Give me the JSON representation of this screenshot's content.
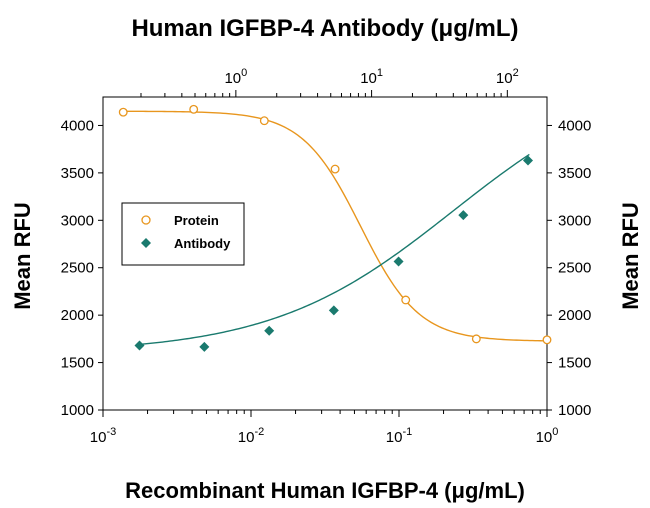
{
  "chart_data": {
    "type": "scatter",
    "title": "Human IGFBP-4 Antibody (μg/mL)",
    "xlabel": "Recombinant Human IGFBP-4 (μg/mL)",
    "ylabel_left": "Mean RFU",
    "ylabel_right": "Mean RFU",
    "x_scale": "log",
    "xlim": [
      0.001,
      1
    ],
    "x2_scale": "log",
    "x2lim": [
      0.105,
      196
    ],
    "ylim": [
      1000,
      4300
    ],
    "yticks": [
      1000,
      1500,
      2000,
      2500,
      3000,
      3500,
      4000
    ],
    "bottom_ticks": [
      {
        "value": 0.001,
        "base": "10",
        "exp": "-3"
      },
      {
        "value": 0.01,
        "base": "10",
        "exp": "-2"
      },
      {
        "value": 0.1,
        "base": "10",
        "exp": "-1"
      },
      {
        "value": 1,
        "base": "10",
        "exp": "0"
      }
    ],
    "top_ticks": [
      {
        "value": 1,
        "base": "10",
        "exp": "0"
      },
      {
        "value": 10,
        "base": "10",
        "exp": "1"
      },
      {
        "value": 100,
        "base": "10",
        "exp": "2"
      }
    ],
    "legend_position": "left-middle",
    "series": [
      {
        "name": "Protein",
        "axis": "bottom",
        "marker": "open-circle",
        "color": "#E8961E",
        "points": [
          {
            "x": 0.00137,
            "y": 4140
          },
          {
            "x": 0.0041,
            "y": 4170
          },
          {
            "x": 0.0123,
            "y": 4050
          },
          {
            "x": 0.037,
            "y": 3540
          },
          {
            "x": 0.111,
            "y": 2160
          },
          {
            "x": 0.333,
            "y": 1750
          },
          {
            "x": 1.0,
            "y": 1740
          }
        ],
        "fit": {
          "type": "4PL",
          "bottom": 1725,
          "top": 4150,
          "ec50": 0.055,
          "hill": 2.2
        }
      },
      {
        "name": "Antibody",
        "axis": "top",
        "marker": "filled-diamond",
        "color": "#1A7A6E",
        "points": [
          {
            "x": 0.195,
            "y": 1680
          },
          {
            "x": 0.586,
            "y": 1665
          },
          {
            "x": 1.76,
            "y": 1835
          },
          {
            "x": 5.27,
            "y": 2050
          },
          {
            "x": 15.8,
            "y": 2565
          },
          {
            "x": 47.4,
            "y": 3055
          },
          {
            "x": 142,
            "y": 3630
          }
        ],
        "fit": {
          "type": "4PL",
          "bottom": 1600,
          "top": 4600,
          "ec50": 40,
          "hill": 0.65
        }
      }
    ]
  }
}
